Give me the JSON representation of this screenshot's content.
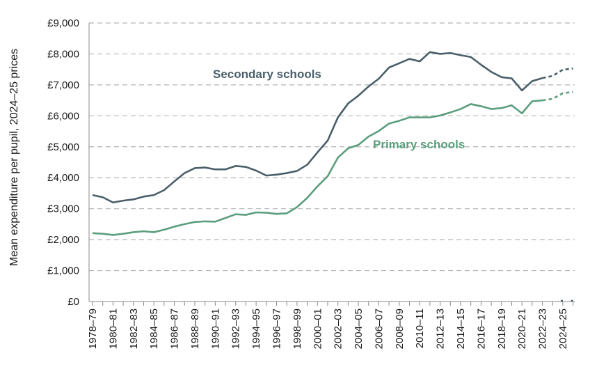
{
  "chart_data": {
    "type": "line",
    "ylabel": "Mean expenditure per pupil, 2024–25 prices",
    "xlabel": "",
    "ylim": [
      0,
      9000
    ],
    "yticks": [
      0,
      1000,
      2000,
      3000,
      4000,
      5000,
      6000,
      7000,
      8000,
      9000
    ],
    "ytick_labels": [
      "£0",
      "£1,000",
      "£2,000",
      "£3,000",
      "£4,000",
      "£5,000",
      "£6,000",
      "£7,000",
      "£8,000",
      "£9,000"
    ],
    "grid": "horizontal dashed",
    "x": [
      "1978–79",
      "1979–80",
      "1980–81",
      "1981–82",
      "1982–83",
      "1983–84",
      "1984–85",
      "1985–86",
      "1986–87",
      "1987–88",
      "1988–89",
      "1989–90",
      "1990–91",
      "1991–92",
      "1992–93",
      "1993–94",
      "1994–95",
      "1995–96",
      "1996–97",
      "1997–98",
      "1998–99",
      "1999–00",
      "2000–01",
      "2001–02",
      "2002–03",
      "2003–04",
      "2004–05",
      "2005–06",
      "2006–07",
      "2007–08",
      "2008–09",
      "2009–10",
      "2010–11",
      "2011–12",
      "2012–13",
      "2013–14",
      "2014–15",
      "2015–16",
      "2016–17",
      "2017–18",
      "2018–19",
      "2019–20",
      "2020–21",
      "2021–22",
      "2022–23",
      "2023–24",
      "2024–25",
      "2025–26"
    ],
    "x_tick_labels": [
      "1978–79",
      "1980–81",
      "1982–83",
      "1984–85",
      "1986–87",
      "1988–89",
      "1990–91",
      "1992–93",
      "1994–95",
      "1996–97",
      "1998–99",
      "2000–01",
      "2002–03",
      "2004–05",
      "2006–07",
      "2008–09",
      "2010–11",
      "2012–13",
      "2014–15",
      "2016–17",
      "2018–19",
      "2020–21",
      "2022–23",
      "2024–25"
    ],
    "projection_starts_at": "2022–23",
    "series": [
      {
        "name": "Secondary schools",
        "color": "#4a5f6a",
        "values": [
          3440,
          3370,
          3200,
          3260,
          3300,
          3390,
          3440,
          3600,
          3880,
          4150,
          4310,
          4330,
          4270,
          4270,
          4380,
          4350,
          4230,
          4070,
          4100,
          4150,
          4220,
          4420,
          4820,
          5200,
          5950,
          6400,
          6650,
          6950,
          7200,
          7560,
          7700,
          7840,
          7760,
          8060,
          8000,
          8030,
          7960,
          7900,
          7650,
          7420,
          7250,
          7210,
          6820,
          7120,
          7220,
          7290,
          7490,
          7530
        ]
      },
      {
        "name": "Primary schools",
        "color": "#5a9e7c",
        "values": [
          2210,
          2190,
          2150,
          2190,
          2240,
          2270,
          2240,
          2320,
          2420,
          2500,
          2570,
          2590,
          2580,
          2700,
          2820,
          2800,
          2880,
          2870,
          2830,
          2850,
          3050,
          3350,
          3720,
          4050,
          4650,
          4950,
          5060,
          5330,
          5510,
          5750,
          5840,
          5950,
          5950,
          5950,
          6010,
          6110,
          6220,
          6380,
          6310,
          6220,
          6250,
          6340,
          6080,
          6470,
          6500,
          6550,
          6730,
          6770
        ]
      }
    ],
    "extra_points": [
      {
        "x": "2024–25",
        "value": 0,
        "color": "#4a5f6a"
      },
      {
        "x": "2025–26",
        "value": 0,
        "color": "#4a5f6a"
      }
    ],
    "series_label_positions": [
      "upper-middle above line",
      "middle right of line"
    ]
  },
  "ytick_labels": [
    "£0",
    "£1,000",
    "£2,000",
    "£3,000",
    "£4,000",
    "£5,000",
    "£6,000",
    "£7,000",
    "£8,000",
    "£9,000"
  ],
  "ylabel": "Mean expenditure per pupil, 2024–25 prices",
  "labels": {
    "secondary": "Secondary schools",
    "primary": "Primary schools"
  }
}
